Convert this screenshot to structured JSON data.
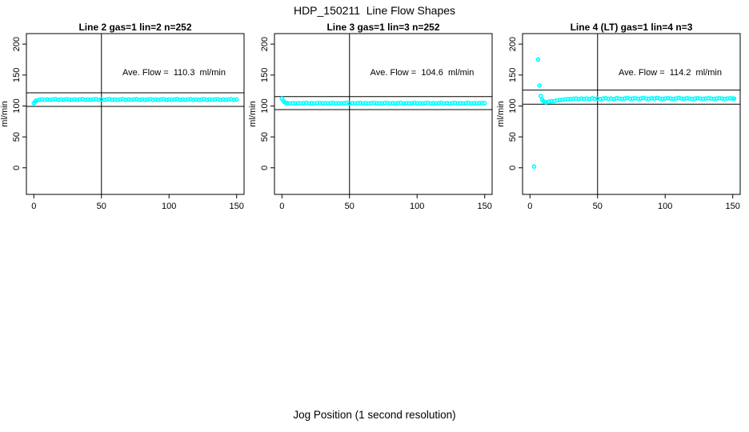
{
  "header": {
    "title": "HDP_150211  Line Flow Shapes"
  },
  "footer": {
    "xlabel": "Jog Position (1 second resolution)"
  },
  "colors": {
    "points": "#00ffff",
    "axis": "#000000",
    "refline": "#000000",
    "background": "#ffffff"
  },
  "chart_data": [
    {
      "type": "scatter",
      "title": "Line 2 gas=1 lin=2 n=252",
      "annotation": "Ave. Flow =  110.3  ml/min",
      "ave_flow_ml_min": 110.3,
      "ylabel": "ml/min",
      "xticks": [
        0,
        50,
        100,
        150
      ],
      "yticks": [
        0,
        50,
        100,
        150,
        200
      ],
      "xlim": [
        -5.5,
        155.5
      ],
      "ylim": [
        -43,
        217
      ],
      "vline_x": 50,
      "hlines": [
        99.3,
        121.3
      ],
      "legend": "none",
      "grid": false,
      "points": [
        [
          0,
          104.5
        ],
        [
          1,
          107
        ],
        [
          2,
          109
        ],
        [
          4,
          110
        ],
        [
          6,
          110.5
        ],
        [
          8,
          110
        ],
        [
          10,
          110.5
        ],
        [
          12,
          110
        ],
        [
          14,
          110.5
        ],
        [
          16,
          111
        ],
        [
          18,
          110
        ],
        [
          20,
          110.5
        ],
        [
          22,
          110
        ],
        [
          24,
          111
        ],
        [
          26,
          110.5
        ],
        [
          28,
          110
        ],
        [
          30,
          110.5
        ],
        [
          32,
          110
        ],
        [
          34,
          110.5
        ],
        [
          36,
          111
        ],
        [
          38,
          110
        ],
        [
          40,
          110.5
        ],
        [
          42,
          110
        ],
        [
          44,
          110.5
        ],
        [
          46,
          111
        ],
        [
          48,
          110
        ],
        [
          50,
          110.5
        ],
        [
          52,
          110
        ],
        [
          54,
          110.5
        ],
        [
          56,
          111
        ],
        [
          58,
          110
        ],
        [
          60,
          110.5
        ],
        [
          62,
          110
        ],
        [
          64,
          110.5
        ],
        [
          66,
          111
        ],
        [
          68,
          110
        ],
        [
          70,
          110.5
        ],
        [
          72,
          110
        ],
        [
          74,
          110.5
        ],
        [
          76,
          111
        ],
        [
          78,
          110
        ],
        [
          80,
          110.5
        ],
        [
          82,
          110
        ],
        [
          84,
          110.5
        ],
        [
          86,
          111
        ],
        [
          88,
          110
        ],
        [
          90,
          110.5
        ],
        [
          92,
          110
        ],
        [
          94,
          110.5
        ],
        [
          96,
          111
        ],
        [
          98,
          110
        ],
        [
          100,
          110.5
        ],
        [
          102,
          110
        ],
        [
          104,
          110.5
        ],
        [
          106,
          111
        ],
        [
          108,
          110
        ],
        [
          110,
          110.5
        ],
        [
          112,
          110
        ],
        [
          114,
          110.5
        ],
        [
          116,
          111
        ],
        [
          118,
          110
        ],
        [
          120,
          110.5
        ],
        [
          122,
          110
        ],
        [
          124,
          110.5
        ],
        [
          126,
          111
        ],
        [
          128,
          110
        ],
        [
          130,
          110.5
        ],
        [
          132,
          110
        ],
        [
          134,
          110.5
        ],
        [
          136,
          111
        ],
        [
          138,
          110
        ],
        [
          140,
          110.5
        ],
        [
          142,
          110
        ],
        [
          144,
          110.5
        ],
        [
          146,
          111
        ],
        [
          148,
          110
        ],
        [
          150,
          110.5
        ]
      ]
    },
    {
      "type": "scatter",
      "title": "Line 3 gas=1 lin=3 n=252",
      "annotation": "Ave. Flow =  104.6  ml/min",
      "ave_flow_ml_min": 104.6,
      "ylabel": "ml/min",
      "xticks": [
        0,
        50,
        100,
        150
      ],
      "yticks": [
        0,
        50,
        100,
        150,
        200
      ],
      "xlim": [
        -5.5,
        155.5
      ],
      "ylim": [
        -43,
        217
      ],
      "vline_x": 50,
      "hlines": [
        94.1,
        115.1
      ],
      "legend": "none",
      "grid": false,
      "points": [
        [
          0,
          112
        ],
        [
          1,
          108.5
        ],
        [
          2,
          106
        ],
        [
          3,
          105
        ],
        [
          4,
          104.5
        ],
        [
          6,
          104
        ],
        [
          8,
          104.5
        ],
        [
          10,
          104
        ],
        [
          12,
          104.5
        ],
        [
          14,
          104
        ],
        [
          16,
          104.5
        ],
        [
          18,
          105
        ],
        [
          20,
          104
        ],
        [
          22,
          104.5
        ],
        [
          24,
          104
        ],
        [
          26,
          104.5
        ],
        [
          28,
          105
        ],
        [
          30,
          104
        ],
        [
          32,
          104.5
        ],
        [
          34,
          104
        ],
        [
          36,
          104.5
        ],
        [
          38,
          105
        ],
        [
          40,
          104
        ],
        [
          42,
          104.5
        ],
        [
          44,
          104
        ],
        [
          46,
          104.5
        ],
        [
          48,
          105
        ],
        [
          50,
          104
        ],
        [
          52,
          104.5
        ],
        [
          54,
          104
        ],
        [
          56,
          104.5
        ],
        [
          58,
          105
        ],
        [
          60,
          104
        ],
        [
          62,
          104.5
        ],
        [
          64,
          104
        ],
        [
          66,
          104.5
        ],
        [
          68,
          105
        ],
        [
          70,
          104
        ],
        [
          72,
          104.5
        ],
        [
          74,
          104
        ],
        [
          76,
          104.5
        ],
        [
          78,
          105
        ],
        [
          80,
          104
        ],
        [
          82,
          104.5
        ],
        [
          84,
          104
        ],
        [
          86,
          104.5
        ],
        [
          88,
          105
        ],
        [
          90,
          104
        ],
        [
          92,
          104.5
        ],
        [
          94,
          104
        ],
        [
          96,
          104.5
        ],
        [
          98,
          105
        ],
        [
          100,
          104
        ],
        [
          102,
          104.5
        ],
        [
          104,
          104
        ],
        [
          106,
          104.5
        ],
        [
          108,
          105
        ],
        [
          110,
          104
        ],
        [
          112,
          104.5
        ],
        [
          114,
          104
        ],
        [
          116,
          104.5
        ],
        [
          118,
          105
        ],
        [
          120,
          104
        ],
        [
          122,
          104.5
        ],
        [
          124,
          104
        ],
        [
          126,
          104.5
        ],
        [
          128,
          105
        ],
        [
          130,
          104
        ],
        [
          132,
          104.5
        ],
        [
          134,
          104
        ],
        [
          136,
          104.5
        ],
        [
          138,
          105
        ],
        [
          140,
          104
        ],
        [
          142,
          104.5
        ],
        [
          144,
          104
        ],
        [
          146,
          104.5
        ],
        [
          148,
          105
        ],
        [
          150,
          104.5
        ]
      ]
    },
    {
      "type": "scatter",
      "title": "Line 4 (LT) gas=1 lin=4 n=3",
      "annotation": "Ave. Flow =  114.2  ml/min",
      "ave_flow_ml_min": 114.2,
      "ylabel": "ml/min",
      "xticks": [
        0,
        50,
        100,
        150
      ],
      "yticks": [
        0,
        50,
        100,
        150,
        200
      ],
      "xlim": [
        -5.5,
        155.5
      ],
      "ylim": [
        -43,
        217
      ],
      "vline_x": 50,
      "hlines": [
        102.8,
        125.6
      ],
      "legend": "none",
      "grid": false,
      "points": [
        [
          3,
          2
        ],
        [
          6,
          175
        ],
        [
          7,
          133
        ],
        [
          8,
          116
        ],
        [
          9,
          110
        ],
        [
          10,
          107.5
        ],
        [
          11,
          106.5
        ],
        [
          12,
          106
        ],
        [
          14,
          107
        ],
        [
          16,
          107.5
        ],
        [
          18,
          108
        ],
        [
          20,
          109
        ],
        [
          22,
          109.5
        ],
        [
          24,
          110
        ],
        [
          26,
          110.5
        ],
        [
          28,
          111
        ],
        [
          30,
          111
        ],
        [
          32,
          111.5
        ],
        [
          34,
          112
        ],
        [
          36,
          111
        ],
        [
          38,
          112
        ],
        [
          40,
          111.5
        ],
        [
          42,
          112
        ],
        [
          44,
          111
        ],
        [
          46,
          112.5
        ],
        [
          48,
          111.5
        ],
        [
          50,
          112
        ],
        [
          52,
          111
        ],
        [
          54,
          112
        ],
        [
          56,
          112.5
        ],
        [
          58,
          111.5
        ],
        [
          60,
          112
        ],
        [
          62,
          111
        ],
        [
          64,
          112.5
        ],
        [
          66,
          112
        ],
        [
          68,
          111.5
        ],
        [
          70,
          112
        ],
        [
          72,
          113
        ],
        [
          74,
          111.5
        ],
        [
          76,
          112
        ],
        [
          78,
          112.5
        ],
        [
          80,
          111.5
        ],
        [
          82,
          112
        ],
        [
          84,
          113
        ],
        [
          86,
          112
        ],
        [
          88,
          111.5
        ],
        [
          90,
          112.5
        ],
        [
          92,
          112
        ],
        [
          94,
          113
        ],
        [
          96,
          112
        ],
        [
          98,
          111.5
        ],
        [
          100,
          112
        ],
        [
          102,
          112.5
        ],
        [
          104,
          112
        ],
        [
          106,
          111.5
        ],
        [
          108,
          112
        ],
        [
          110,
          113
        ],
        [
          112,
          112
        ],
        [
          114,
          111.5
        ],
        [
          116,
          112.5
        ],
        [
          118,
          112
        ],
        [
          120,
          111.5
        ],
        [
          122,
          112
        ],
        [
          124,
          112.5
        ],
        [
          126,
          112
        ],
        [
          128,
          111.5
        ],
        [
          130,
          112
        ],
        [
          132,
          112.5
        ],
        [
          134,
          112
        ],
        [
          136,
          111.5
        ],
        [
          138,
          112
        ],
        [
          140,
          112.5
        ],
        [
          142,
          112
        ],
        [
          144,
          111.5
        ],
        [
          146,
          112
        ],
        [
          148,
          112.5
        ],
        [
          150,
          112
        ],
        [
          151,
          112
        ]
      ]
    }
  ]
}
